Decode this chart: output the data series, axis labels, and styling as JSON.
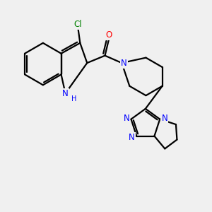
{
  "background_color": "#f0f0f0",
  "bond_color": "#000000",
  "blue": "#0000FF",
  "red": "#FF0000",
  "green": "#008000",
  "lw": 1.6,
  "fontsize": 8.5,
  "xlim": [
    0,
    10
  ],
  "ylim": [
    0,
    10
  ]
}
